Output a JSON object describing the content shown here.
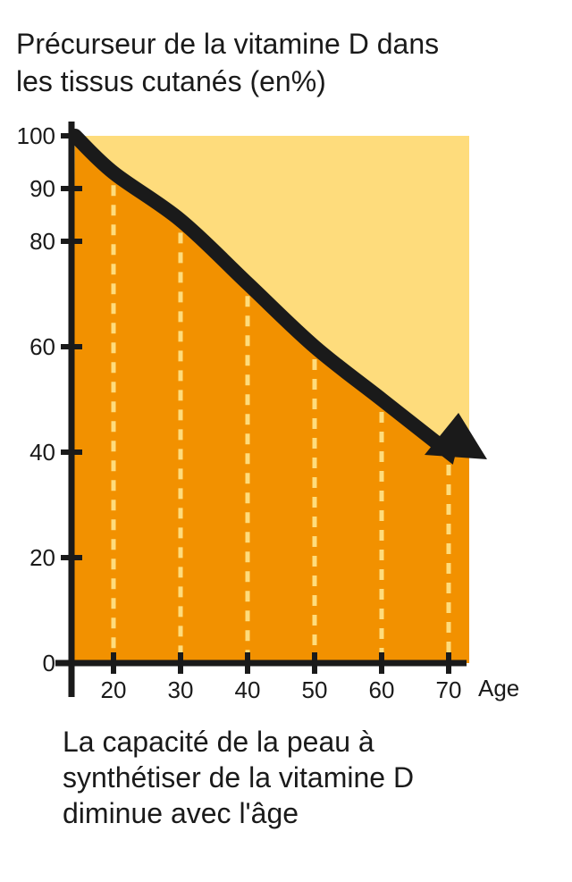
{
  "title_lines": [
    "Précurseur de la vitamine D dans",
    "les tissus cutanés (en%)"
  ],
  "caption_lines": [
    "La capacité de la peau à",
    "synthétiser de la vitamine D",
    "diminue avec l'âge"
  ],
  "colors": {
    "background_region": "#FEDC7C",
    "filled_region": "#F29100",
    "dashed_lines": "#FEDC7C",
    "axis_and_arrow": "#1a1a1a"
  },
  "chart_data": {
    "type": "area",
    "title": "Précurseur de la vitamine D dans les tissus cutanés (en%)",
    "xlabel": "Age",
    "ylabel": "",
    "x": [
      15,
      20,
      30,
      40,
      50,
      60,
      70
    ],
    "series": [
      {
        "values": [
          100,
          93,
          84,
          72,
          60,
          50,
          40
        ]
      }
    ],
    "xticks": [
      "20",
      "30",
      "40",
      "50",
      "60",
      "70"
    ],
    "yticks": [
      "0",
      "20",
      "40",
      "60",
      "80",
      "90",
      "100"
    ],
    "ylim": [
      0,
      100
    ],
    "xlim": [
      15,
      73
    ],
    "grid": false
  }
}
